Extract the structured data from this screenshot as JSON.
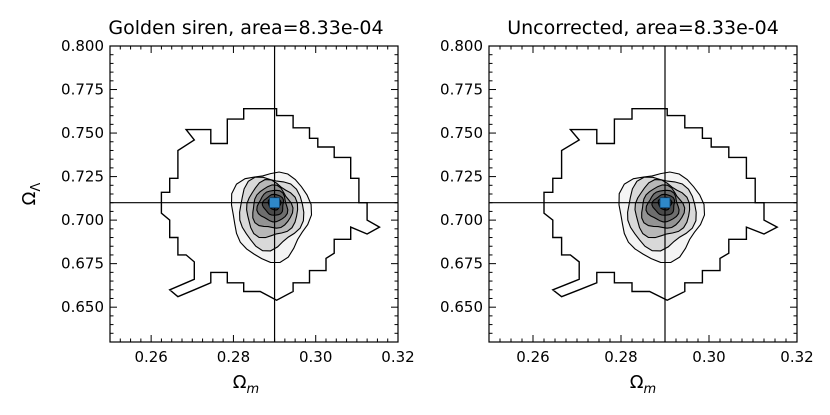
{
  "figure": {
    "xlabel_base": "Ω",
    "xlabel_sub": "m",
    "ylabel_base": "Ω",
    "ylabel_sub": "Λ"
  },
  "chart_data": [
    {
      "type": "heatmap",
      "title": "Golden siren, area=8.33e-04",
      "xlabel": "Ωm",
      "ylabel": "ΩΛ",
      "xlim": [
        0.25,
        0.32
      ],
      "ylim": [
        0.63,
        0.8
      ],
      "xticks": [
        0.26,
        0.28,
        0.3,
        0.32
      ],
      "xtick_labels": [
        "0.26",
        "0.28",
        "0.30",
        "0.32"
      ],
      "yticks": [
        0.65,
        0.675,
        0.7,
        0.725,
        0.75,
        0.775,
        0.8
      ],
      "ytick_labels": [
        "0.650",
        "0.675",
        "0.700",
        "0.725",
        "0.750",
        "0.775",
        "0.800"
      ],
      "truth": {
        "x": 0.29,
        "y": 0.71
      },
      "peak": {
        "x": 0.29,
        "y": 0.71
      },
      "colors": {
        "peak": "#2f88c8",
        "contour_fill_dark": "#2b2b2b",
        "contour_line": "#000000"
      },
      "grid": false
    },
    {
      "type": "heatmap",
      "title": "Uncorrected, area=8.33e-04",
      "xlabel": "Ωm",
      "ylabel": "",
      "xlim": [
        0.25,
        0.32
      ],
      "ylim": [
        0.63,
        0.8
      ],
      "xticks": [
        0.26,
        0.28,
        0.3,
        0.32
      ],
      "xtick_labels": [
        "0.26",
        "0.28",
        "0.30",
        "0.32"
      ],
      "yticks": [
        0.65,
        0.675,
        0.7,
        0.725,
        0.75,
        0.775,
        0.8
      ],
      "ytick_labels": [
        "0.650",
        "0.675",
        "0.700",
        "0.725",
        "0.750",
        "0.775",
        "0.800"
      ],
      "truth": {
        "x": 0.29,
        "y": 0.71
      },
      "peak": {
        "x": 0.29,
        "y": 0.71
      },
      "colors": {
        "peak": "#2f88c8",
        "contour_fill_dark": "#2b2b2b",
        "contour_line": "#000000"
      },
      "grid": false
    }
  ]
}
